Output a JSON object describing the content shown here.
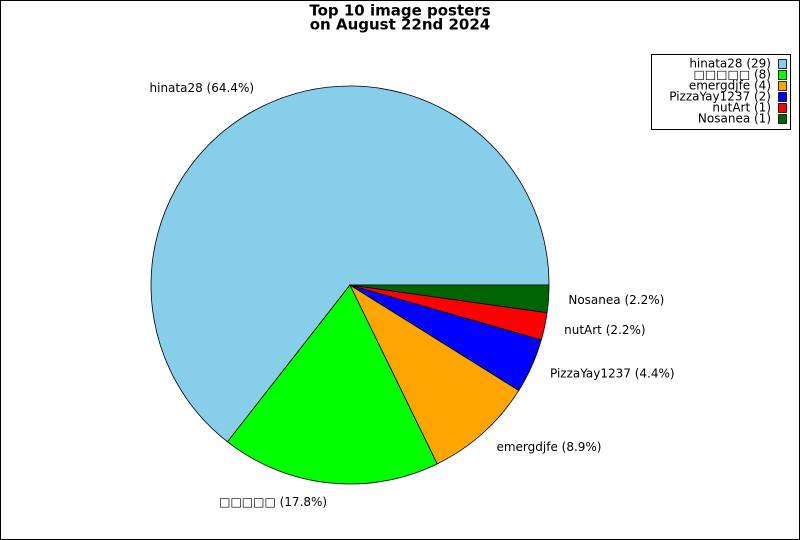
{
  "chart_data": {
    "type": "pie",
    "title": "Top 10 image posters",
    "subtitle": "on August 22nd 2024",
    "categories": [
      "hinata28",
      "□□□□□",
      "emergdjfe",
      "PizzaYay1237",
      "nutArt",
      "Nosanea"
    ],
    "values": [
      29,
      8,
      4,
      2,
      1,
      1
    ],
    "legend_labels": [
      "hinata28 (29)",
      "□□□□□ (8)",
      "emergdjfe (4)",
      "PizzaYay1237 (2)",
      "nutArt (1)",
      "Nosanea (1)"
    ],
    "value_labels": [
      "hinata28 (64.4%)",
      "□□□□□ (17.8%)",
      "emergdjfe (8.9%)",
      "PizzaYay1237 (4.4%)",
      "nutArt (2.2%)",
      "Nosanea (2.2%)"
    ],
    "colors": [
      "#87ceeb",
      "#00ff00",
      "#ffa500",
      "#0000ff",
      "#ff0000",
      "#006400"
    ],
    "legend": "upper right"
  }
}
